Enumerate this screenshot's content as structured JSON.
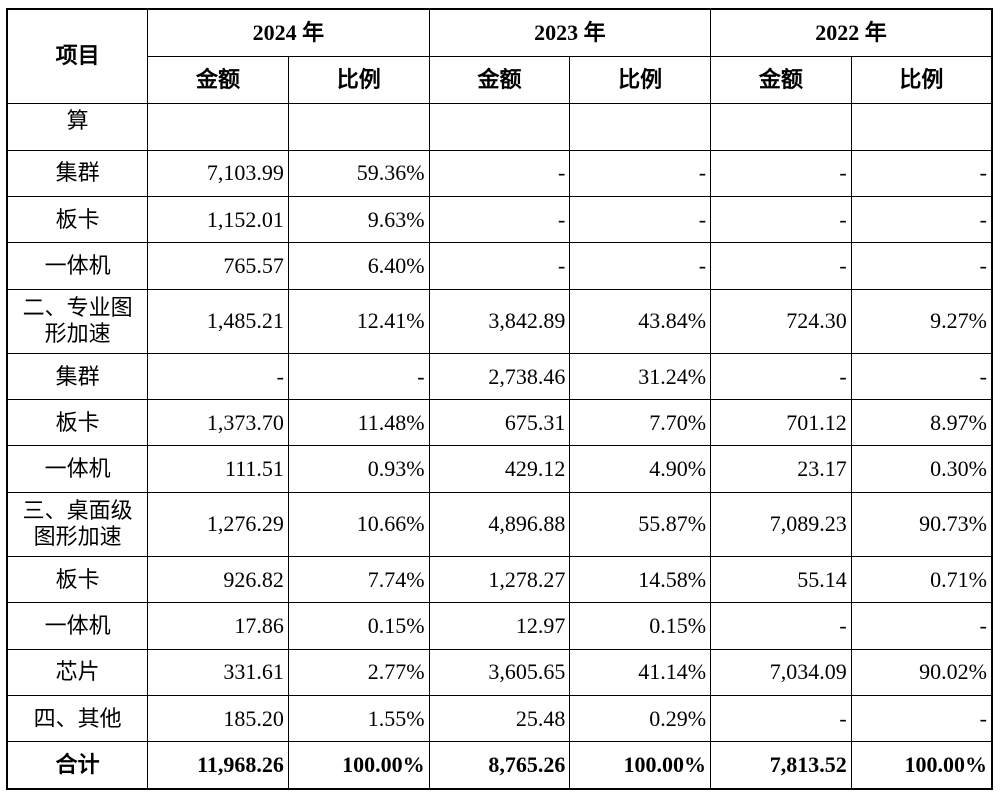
{
  "header": {
    "item_label": "项目",
    "years": [
      "2024 年",
      "2023 年",
      "2022 年"
    ],
    "amount_label": "金额",
    "ratio_label": "比例"
  },
  "rows": [
    {
      "item": "算",
      "values": [
        "",
        "",
        "",
        "",
        "",
        ""
      ]
    },
    {
      "item": "集群",
      "values": [
        "7,103.99",
        "59.36%",
        "-",
        "-",
        "-",
        "-"
      ]
    },
    {
      "item": "板卡",
      "values": [
        "1,152.01",
        "9.63%",
        "-",
        "-",
        "-",
        "-"
      ]
    },
    {
      "item": "一体机",
      "values": [
        "765.57",
        "6.40%",
        "-",
        "-",
        "-",
        "-"
      ]
    },
    {
      "item": "二、专业图形加速",
      "values": [
        "1,485.21",
        "12.41%",
        "3,842.89",
        "43.84%",
        "724.30",
        "9.27%"
      ]
    },
    {
      "item": "集群",
      "values": [
        "-",
        "-",
        "2,738.46",
        "31.24%",
        "-",
        "-"
      ]
    },
    {
      "item": "板卡",
      "values": [
        "1,373.70",
        "11.48%",
        "675.31",
        "7.70%",
        "701.12",
        "8.97%"
      ]
    },
    {
      "item": "一体机",
      "values": [
        "111.51",
        "0.93%",
        "429.12",
        "4.90%",
        "23.17",
        "0.30%"
      ]
    },
    {
      "item": "三、桌面级图形加速",
      "values": [
        "1,276.29",
        "10.66%",
        "4,896.88",
        "55.87%",
        "7,089.23",
        "90.73%"
      ]
    },
    {
      "item": "板卡",
      "values": [
        "926.82",
        "7.74%",
        "1,278.27",
        "14.58%",
        "55.14",
        "0.71%"
      ]
    },
    {
      "item": "一体机",
      "values": [
        "17.86",
        "0.15%",
        "12.97",
        "0.15%",
        "-",
        "-"
      ]
    },
    {
      "item": "芯片",
      "values": [
        "331.61",
        "2.77%",
        "3,605.65",
        "41.14%",
        "7,034.09",
        "90.02%"
      ]
    },
    {
      "item": "四、其他",
      "values": [
        "185.20",
        "1.55%",
        "25.48",
        "0.29%",
        "-",
        "-"
      ]
    }
  ],
  "total": {
    "item": "合计",
    "values": [
      "11,968.26",
      "100.00%",
      "8,765.26",
      "100.00%",
      "7,813.52",
      "100.00%"
    ]
  }
}
